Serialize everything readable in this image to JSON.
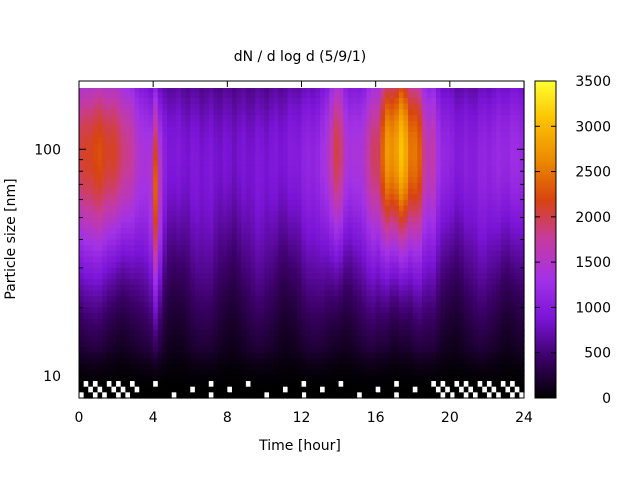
{
  "chart_data": {
    "type": "heatmap",
    "title": "dN / d log d (5/9/1)",
    "xlabel": "Time [hour]",
    "ylabel": "Particle size [nm]",
    "xlim": [
      0,
      24
    ],
    "ylim": [
      8,
      200
    ],
    "yscale": "log",
    "xticks": [
      {
        "value": 0,
        "label": "0"
      },
      {
        "value": 4,
        "label": "4"
      },
      {
        "value": 8,
        "label": "8"
      },
      {
        "value": 12,
        "label": "12"
      },
      {
        "value": 16,
        "label": "16"
      },
      {
        "value": 20,
        "label": "20"
      },
      {
        "value": 24,
        "label": "24"
      }
    ],
    "yticks": [
      {
        "value": 10,
        "label": "10"
      },
      {
        "value": 100,
        "label": "100"
      }
    ],
    "colorbar": {
      "range": [
        0,
        3500
      ],
      "ticks": [
        {
          "value": 0,
          "label": "0"
        },
        {
          "value": 500,
          "label": "500"
        },
        {
          "value": 1000,
          "label": "1000"
        },
        {
          "value": 1500,
          "label": "1500"
        },
        {
          "value": 2000,
          "label": "2000"
        },
        {
          "value": 2500,
          "label": "2500"
        },
        {
          "value": 3000,
          "label": "3000"
        },
        {
          "value": 3500,
          "label": "3500"
        }
      ],
      "colormap": [
        "#000000",
        "#3a0065",
        "#7a14d6",
        "#a332e6",
        "#c63ba0",
        "#d8440f",
        "#ec8a00",
        "#fbc000",
        "#ffff30"
      ]
    },
    "grid": false,
    "features": [
      {
        "t_start": 0,
        "t_end": 3.5,
        "peak_size": 100,
        "peak_value": 2200
      },
      {
        "t_start": 3.9,
        "t_end": 4.4,
        "peak_size": 70,
        "peak_value": 2000
      },
      {
        "t_start": 13.3,
        "t_end": 14.4,
        "peak_size": 110,
        "peak_value": 2100
      },
      {
        "t_start": 16,
        "t_end": 19,
        "peak_size": 110,
        "peak_value": 2900
      }
    ]
  }
}
